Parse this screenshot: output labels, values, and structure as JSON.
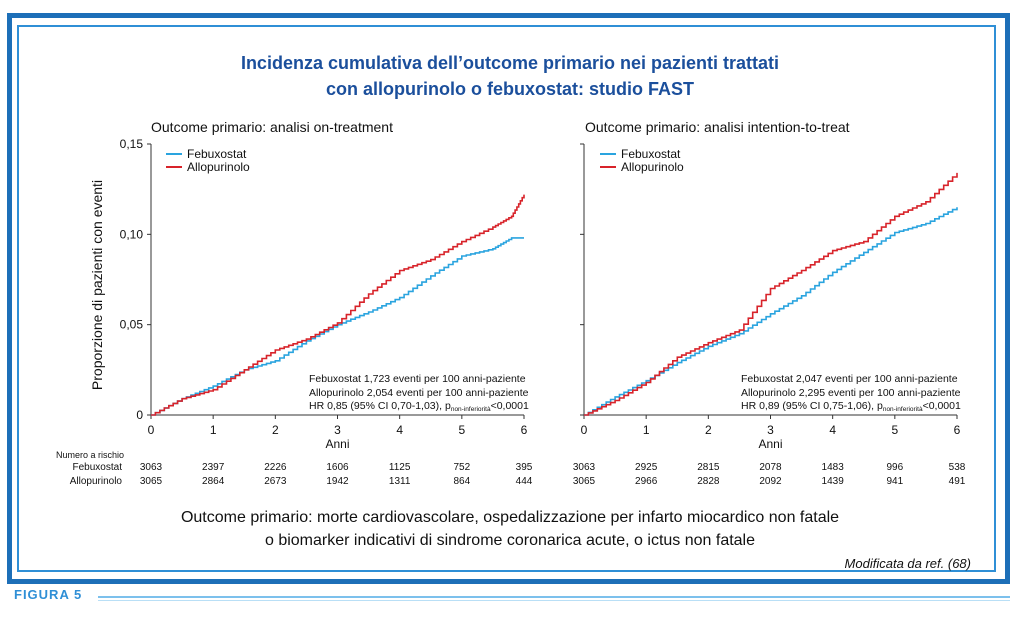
{
  "title_line1": "Incidenza cumulativa dell’outcome primario nei pazienti trattati",
  "title_line2": "con allopurinolo o febuxostat: studio FAST",
  "ylabel": "Proporzione di pazienti con eventi",
  "caption_line1": "Outcome primario: morte cardiovascolare, ospedalizzazione per infarto miocardico non fatale",
  "caption_line2": "o biomarker indicativi di sindrome coronarica acute, o ictus non fatale",
  "source": "Modificata da ref. (68)",
  "figure_label": "FIGURA 5",
  "risk_header": "Numero a rischio",
  "risk_labels": [
    "Febuxostat",
    "Allopurinolo"
  ],
  "colors": {
    "febuxostat": "#2aa4df",
    "allopurinolo": "#d8232a",
    "title": "#1b4f9c",
    "frame": "#1d6fb8"
  },
  "chart_data": [
    {
      "type": "line",
      "title": "Outcome primario: analisi on-treatment",
      "xlabel": "Anni",
      "ylabel": "Proporzione di pazienti con eventi",
      "xlim": [
        0,
        6
      ],
      "ylim": [
        0,
        0.15
      ],
      "xticks": [
        "0",
        "1",
        "2",
        "3",
        "4",
        "5",
        "6"
      ],
      "yticks": [
        "0",
        "0,05",
        "0,10",
        "0,15"
      ],
      "legend": "top-left",
      "series": [
        {
          "name": "Febuxostat",
          "x": [
            0,
            0.5,
            1,
            1.5,
            2,
            2.5,
            3,
            3.5,
            4,
            4.5,
            5,
            5.5,
            5.8,
            6
          ],
          "y": [
            0,
            0.009,
            0.016,
            0.025,
            0.03,
            0.041,
            0.05,
            0.057,
            0.065,
            0.077,
            0.088,
            0.092,
            0.098,
            0.098
          ]
        },
        {
          "name": "Allopurinolo",
          "x": [
            0,
            0.5,
            1,
            1.5,
            2,
            2.5,
            3,
            3.5,
            4,
            4.5,
            5,
            5.5,
            5.8,
            6
          ],
          "y": [
            0,
            0.009,
            0.014,
            0.025,
            0.036,
            0.042,
            0.051,
            0.067,
            0.08,
            0.086,
            0.096,
            0.104,
            0.11,
            0.122
          ]
        }
      ],
      "annotations": [
        "Febuxostat 1,723 eventi per 100 anni-paziente",
        "Allopurinolo 2,054 eventi per 100 anni-paziente",
        "HR 0,85 (95% CI 0,70-1,03), p",
        "non-inferiorità",
        "<0,0001"
      ],
      "at_risk": {
        "Febuxostat": [
          "3063",
          "2397",
          "2226",
          "1606",
          "1125",
          "752",
          "395"
        ],
        "Allopurinolo": [
          "3065",
          "2864",
          "2673",
          "1942",
          "1311",
          "864",
          "444"
        ]
      }
    },
    {
      "type": "line",
      "title": "Outcome primario: analisi intention-to-treat",
      "xlabel": "Anni",
      "ylabel": "",
      "xlim": [
        0,
        6
      ],
      "ylim": [
        0,
        0.15
      ],
      "xticks": [
        "0",
        "1",
        "2",
        "3",
        "4",
        "5",
        "6"
      ],
      "yticks": [],
      "legend": "top-left",
      "series": [
        {
          "name": "Febuxostat",
          "x": [
            0,
            0.5,
            1,
            1.5,
            2,
            2.5,
            3,
            3.5,
            4,
            4.5,
            5,
            5.5,
            6
          ],
          "y": [
            0,
            0.01,
            0.019,
            0.029,
            0.038,
            0.045,
            0.056,
            0.066,
            0.079,
            0.09,
            0.101,
            0.106,
            0.115
          ]
        },
        {
          "name": "Allopurinolo",
          "x": [
            0,
            0.5,
            1,
            1.5,
            2,
            2.5,
            3,
            3.5,
            4,
            4.5,
            5,
            5.5,
            6
          ],
          "y": [
            0,
            0.008,
            0.018,
            0.032,
            0.04,
            0.047,
            0.07,
            0.08,
            0.091,
            0.096,
            0.11,
            0.118,
            0.134
          ]
        }
      ],
      "annotations": [
        "Febuxostat 2,047 eventi per 100 anni-paziente",
        "Allopurinolo 2,295 eventi per 100 anni-paziente",
        "HR 0,89 (95% CI 0,75-1,06), p",
        "non-inferiorità",
        "<0,0001"
      ],
      "at_risk": {
        "Febuxostat": [
          "3063",
          "2925",
          "2815",
          "2078",
          "1483",
          "996",
          "538"
        ],
        "Allopurinolo": [
          "3065",
          "2966",
          "2828",
          "2092",
          "1439",
          "941",
          "491"
        ]
      }
    }
  ]
}
